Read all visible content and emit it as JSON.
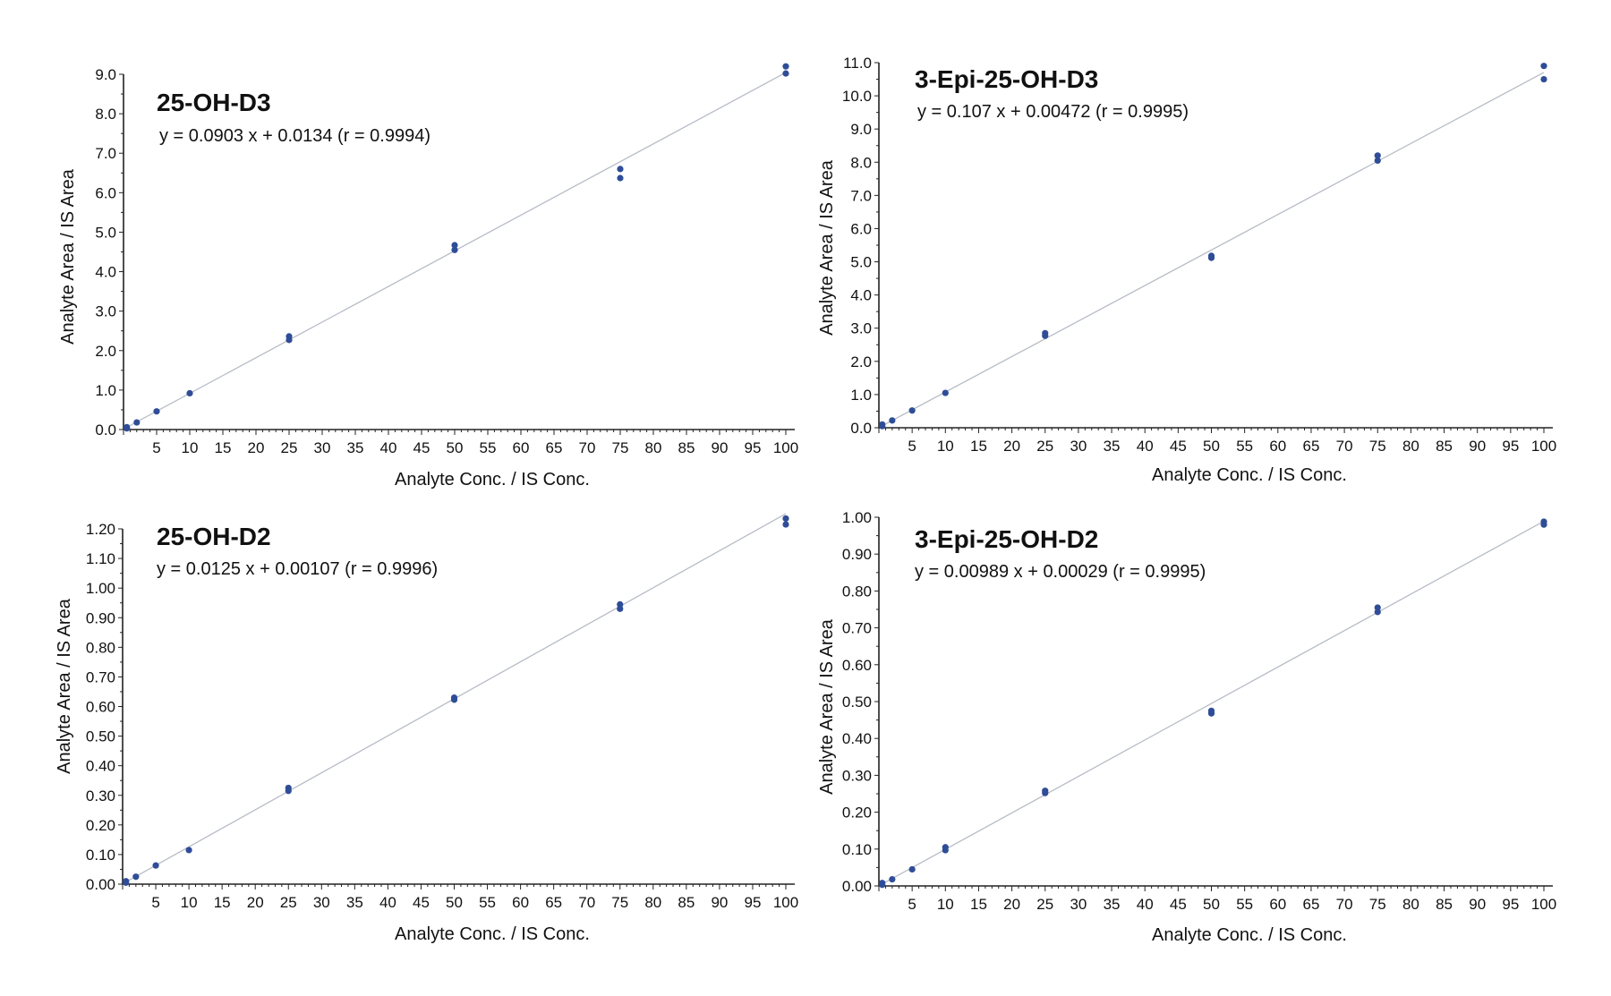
{
  "chart_data": [
    {
      "type": "scatter",
      "title": "25-OH-D3",
      "equation": "y = 0.0903 x + 0.0134 (r = 0.9994)",
      "xlabel": "Analyte Conc. / IS Conc.",
      "ylabel": "Analyte Area / IS Area",
      "xlim": [
        0,
        100
      ],
      "ylim": [
        0,
        9.0
      ],
      "xticks": [
        "5",
        "10",
        "15",
        "20",
        "25",
        "30",
        "35",
        "40",
        "45",
        "50",
        "55",
        "60",
        "65",
        "70",
        "75",
        "80",
        "85",
        "90",
        "95",
        "100"
      ],
      "yticks": [
        "0.0",
        "1.0",
        "2.0",
        "3.0",
        "4.0",
        "5.0",
        "6.0",
        "7.0",
        "8.0",
        "9.0"
      ],
      "fit": {
        "slope": 0.0903,
        "intercept": 0.0134
      },
      "points": [
        {
          "x": 0.5,
          "y": 0.03
        },
        {
          "x": 0.5,
          "y": 0.06
        },
        {
          "x": 2,
          "y": 0.18
        },
        {
          "x": 5,
          "y": 0.46
        },
        {
          "x": 10,
          "y": 0.92
        },
        {
          "x": 25,
          "y": 2.27
        },
        {
          "x": 25,
          "y": 2.36
        },
        {
          "x": 50,
          "y": 4.55
        },
        {
          "x": 50,
          "y": 4.67
        },
        {
          "x": 75,
          "y": 6.37
        },
        {
          "x": 75,
          "y": 6.6
        },
        {
          "x": 100,
          "y": 9.02
        },
        {
          "x": 100,
          "y": 9.2
        }
      ]
    },
    {
      "type": "scatter",
      "title": "3-Epi-25-OH-D3",
      "equation": "y = 0.107 x + 0.00472 (r = 0.9995)",
      "xlabel": "Analyte Conc. / IS Conc.",
      "ylabel": "Analyte Area / IS Area",
      "xlim": [
        0,
        100
      ],
      "ylim": [
        0,
        11.0
      ],
      "xticks": [
        "5",
        "10",
        "15",
        "20",
        "25",
        "30",
        "35",
        "40",
        "45",
        "50",
        "55",
        "60",
        "65",
        "70",
        "75",
        "80",
        "85",
        "90",
        "95",
        "100"
      ],
      "yticks": [
        "0.0",
        "1.0",
        "2.0",
        "3.0",
        "4.0",
        "5.0",
        "6.0",
        "7.0",
        "8.0",
        "9.0",
        "10.0",
        "11.0"
      ],
      "fit": {
        "slope": 0.107,
        "intercept": 0.00472
      },
      "points": [
        {
          "x": 0.5,
          "y": 0.05
        },
        {
          "x": 0.5,
          "y": 0.1
        },
        {
          "x": 2,
          "y": 0.22
        },
        {
          "x": 5,
          "y": 0.52
        },
        {
          "x": 10,
          "y": 1.05
        },
        {
          "x": 25,
          "y": 2.77
        },
        {
          "x": 25,
          "y": 2.85
        },
        {
          "x": 50,
          "y": 5.12
        },
        {
          "x": 50,
          "y": 5.18
        },
        {
          "x": 75,
          "y": 8.05
        },
        {
          "x": 75,
          "y": 8.2
        },
        {
          "x": 100,
          "y": 10.5
        },
        {
          "x": 100,
          "y": 10.9
        }
      ]
    },
    {
      "type": "scatter",
      "title": "25-OH-D2",
      "equation": "y = 0.0125 x + 0.00107 (r = 0.9996)",
      "xlabel": "Analyte Conc. / IS Conc.",
      "ylabel": "Analyte Area / IS Area",
      "xlim": [
        0,
        100
      ],
      "ylim": [
        0,
        1.2
      ],
      "xticks": [
        "5",
        "10",
        "15",
        "20",
        "25",
        "30",
        "35",
        "40",
        "45",
        "50",
        "55",
        "60",
        "65",
        "70",
        "75",
        "80",
        "85",
        "90",
        "95",
        "100"
      ],
      "yticks": [
        "0.00",
        "0.10",
        "0.20",
        "0.30",
        "0.40",
        "0.50",
        "0.60",
        "0.70",
        "0.80",
        "0.90",
        "1.00",
        "1.10",
        "1.20"
      ],
      "fit": {
        "slope": 0.0125,
        "intercept": 0.00107
      },
      "points": [
        {
          "x": 0.5,
          "y": 0.005
        },
        {
          "x": 0.5,
          "y": 0.01
        },
        {
          "x": 2,
          "y": 0.025
        },
        {
          "x": 5,
          "y": 0.063
        },
        {
          "x": 10,
          "y": 0.115
        },
        {
          "x": 25,
          "y": 0.315
        },
        {
          "x": 25,
          "y": 0.325
        },
        {
          "x": 50,
          "y": 0.623
        },
        {
          "x": 50,
          "y": 0.63
        },
        {
          "x": 75,
          "y": 0.93
        },
        {
          "x": 75,
          "y": 0.945
        },
        {
          "x": 100,
          "y": 1.215
        },
        {
          "x": 100,
          "y": 1.235
        }
      ]
    },
    {
      "type": "scatter",
      "title": "3-Epi-25-OH-D2",
      "equation": "y = 0.00989 x + 0.00029 (r = 0.9995)",
      "xlabel": "Analyte Conc. / IS Conc.",
      "ylabel": "Analyte Area / IS Area",
      "xlim": [
        0,
        100
      ],
      "ylim": [
        0,
        1.0
      ],
      "xticks": [
        "5",
        "10",
        "15",
        "20",
        "25",
        "30",
        "35",
        "40",
        "45",
        "50",
        "55",
        "60",
        "65",
        "70",
        "75",
        "80",
        "85",
        "90",
        "95",
        "100"
      ],
      "yticks": [
        "0.00",
        "0.10",
        "0.20",
        "0.30",
        "0.40",
        "0.50",
        "0.60",
        "0.70",
        "0.80",
        "0.90",
        "1.00"
      ],
      "fit": {
        "slope": 0.00989,
        "intercept": 0.00029
      },
      "points": [
        {
          "x": 0.5,
          "y": 0.003
        },
        {
          "x": 0.5,
          "y": 0.008
        },
        {
          "x": 2,
          "y": 0.018
        },
        {
          "x": 5,
          "y": 0.045
        },
        {
          "x": 10,
          "y": 0.097
        },
        {
          "x": 10,
          "y": 0.105
        },
        {
          "x": 25,
          "y": 0.252
        },
        {
          "x": 25,
          "y": 0.258
        },
        {
          "x": 50,
          "y": 0.468
        },
        {
          "x": 50,
          "y": 0.475
        },
        {
          "x": 75,
          "y": 0.743
        },
        {
          "x": 75,
          "y": 0.755
        },
        {
          "x": 100,
          "y": 0.98
        },
        {
          "x": 100,
          "y": 0.988
        }
      ]
    }
  ],
  "colors": {
    "points": "#2f4d97",
    "fit_line": "#b7bcc6",
    "axis": "#222222",
    "text": "#111111"
  }
}
